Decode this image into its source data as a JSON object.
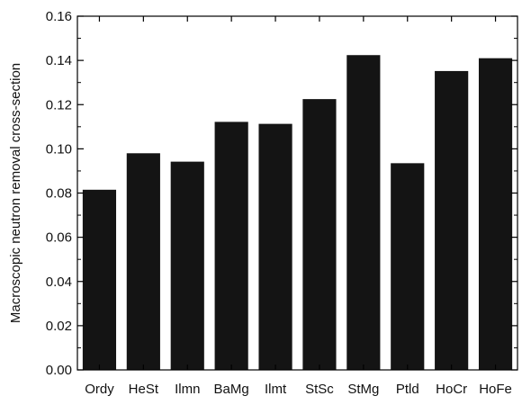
{
  "chart_data": {
    "type": "bar",
    "title": "",
    "xlabel": "",
    "ylabel": "Macroscopic neutron removal cross-section",
    "ylim": [
      0,
      0.16
    ],
    "yticks": [
      "0.00",
      "0.02",
      "0.04",
      "0.06",
      "0.08",
      "0.10",
      "0.12",
      "0.14",
      "0.16"
    ],
    "grid": false,
    "legend": "none",
    "bar_color": "#141414",
    "categories": [
      "Ordy",
      "HeSt",
      "Ilmn",
      "BaMg",
      "Ilmt",
      "StSc",
      "StMg",
      "Ptld",
      "HoCr",
      "HoFe"
    ],
    "values": [
      0.0815,
      0.098,
      0.0942,
      0.1122,
      0.1113,
      0.1225,
      0.1424,
      0.0935,
      0.1352,
      0.141
    ]
  }
}
